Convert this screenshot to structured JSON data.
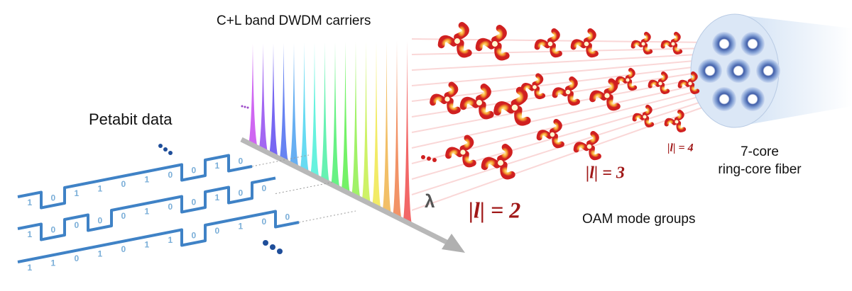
{
  "labels": {
    "carriers": "C+L band DWDM carriers",
    "data": "Petabit data",
    "wavelength": "λ",
    "oam": "OAM mode groups",
    "fiber_line1": "7-core",
    "fiber_line2": "ring-core fiber"
  },
  "mode_labels": [
    "|l| = 2",
    "|l| = 3",
    "|l| = 4"
  ],
  "bit_streams": [
    [
      "1",
      "0",
      "1",
      "1",
      "0",
      "1",
      "0",
      "0",
      "1",
      "0"
    ],
    [
      "1",
      "0",
      "0",
      "0",
      "0",
      "1",
      "0",
      "0",
      "1",
      "0",
      "0"
    ],
    [
      "1",
      "1",
      "0",
      "1",
      "0",
      "1",
      "1",
      "0",
      "0",
      "1",
      "0",
      "0"
    ]
  ]
}
